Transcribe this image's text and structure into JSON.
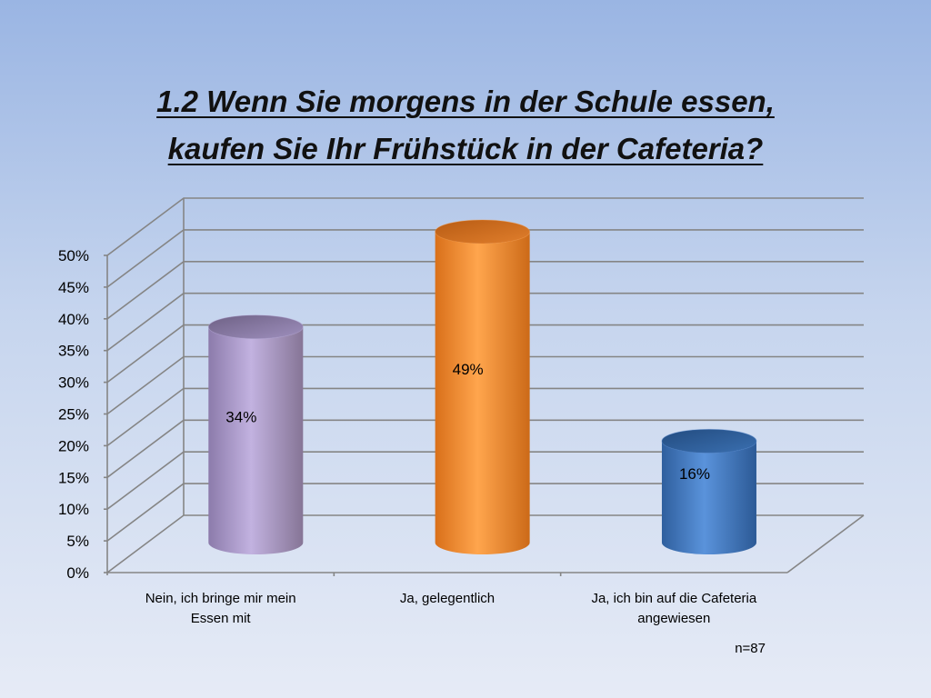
{
  "chart_title": {
    "line1": "1.2 Wenn Sie morgens in der Schule essen,",
    "line2": "kaufen Sie Ihr Frühstück in der Cafeteria?"
  },
  "sample_note": "n=87",
  "chart_data": {
    "type": "bar",
    "title": "1.2 Wenn Sie morgens in der Schule essen, kaufen Sie Ihr Frühstück in der Cafeteria?",
    "categories": [
      [
        "Nein, ich bringe mir mein",
        "Essen mit"
      ],
      [
        "Ja, gelegentlich"
      ],
      [
        "Ja, ich bin auf die Cafeteria",
        "angewiesen"
      ]
    ],
    "values": [
      34,
      49,
      16
    ],
    "data_labels": [
      "34%",
      "49%",
      "16%"
    ],
    "bar_colors": [
      "#b6a6d6",
      "#ff9a3d",
      "#4a82cc"
    ],
    "ylim": [
      0,
      50
    ],
    "yticks": [
      "0%",
      "5%",
      "10%",
      "15%",
      "20%",
      "25%",
      "30%",
      "35%",
      "40%",
      "45%",
      "50%"
    ],
    "grid": true,
    "style": "3d-cylinder",
    "xlabel": "",
    "ylabel": ""
  }
}
